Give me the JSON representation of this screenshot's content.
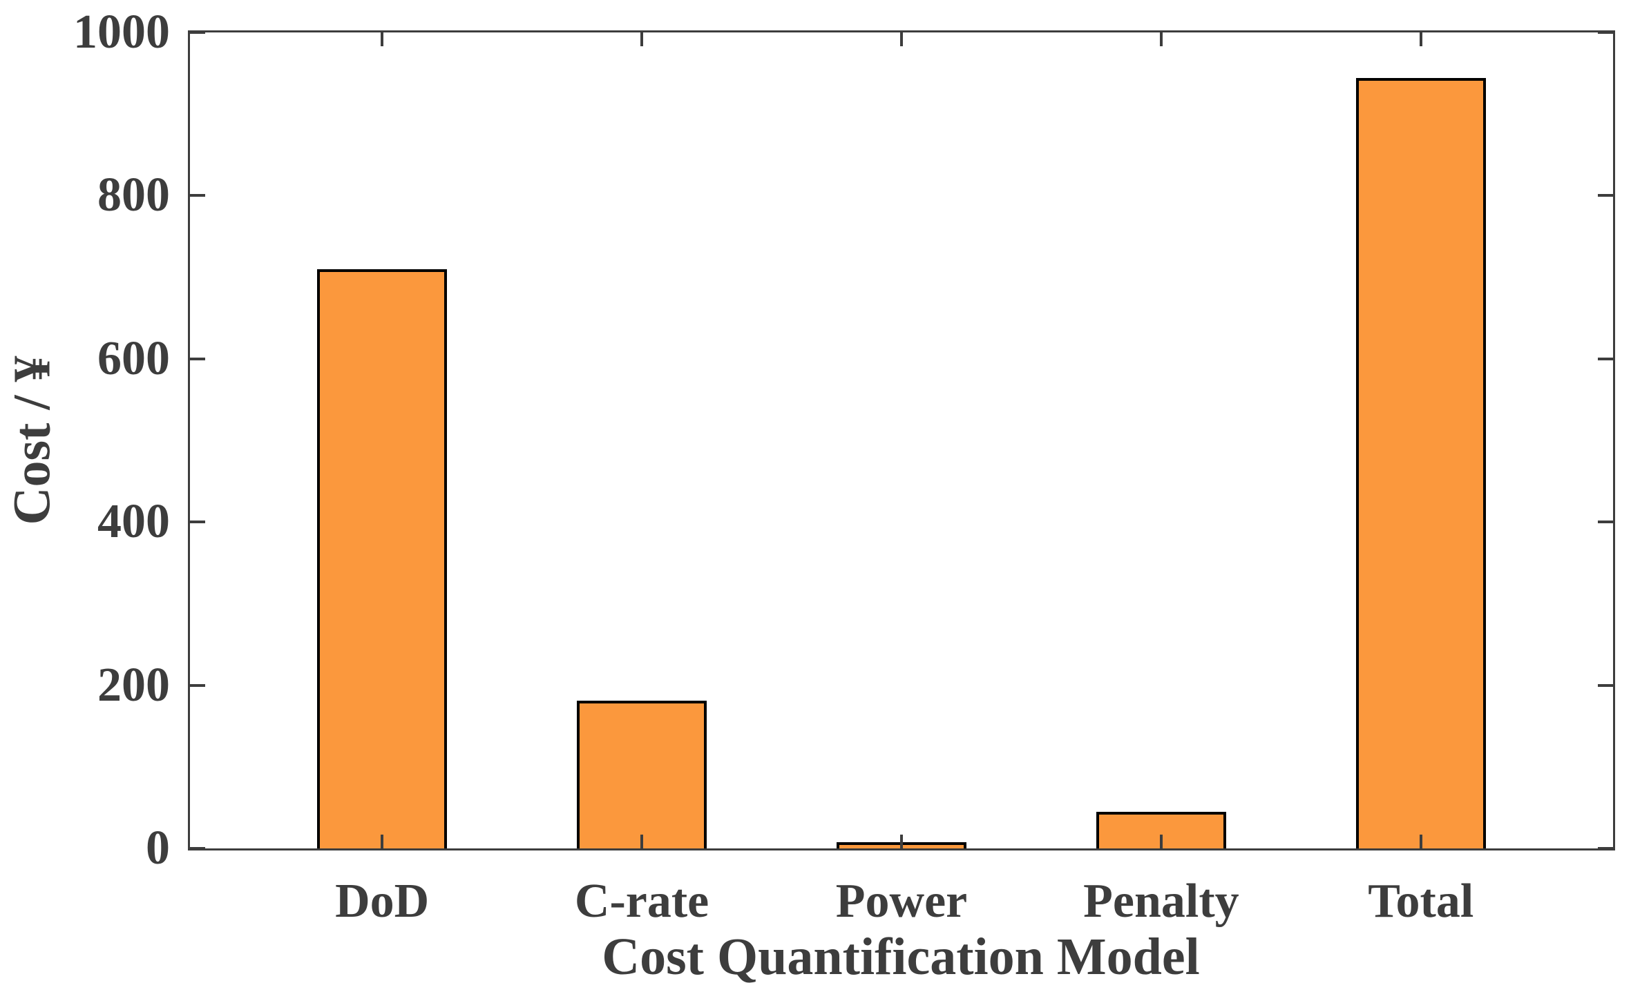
{
  "chart_data": {
    "type": "bar",
    "categories": [
      "DoD",
      "C-rate",
      "Power",
      "Penalty",
      "Total"
    ],
    "values": [
      710,
      181,
      8,
      45,
      944
    ],
    "title": "",
    "xlabel": "Cost Quantification Model",
    "ylabel": "Cost / ¥",
    "ylim": [
      0,
      1000
    ],
    "yticks": [
      "0",
      "200",
      "400",
      "600",
      "800",
      "1000"
    ],
    "grid": false,
    "legend": "none",
    "bar_color": "#fb983d",
    "bar_edge_color": "#000000",
    "axis_color": "#3d3d3d"
  }
}
